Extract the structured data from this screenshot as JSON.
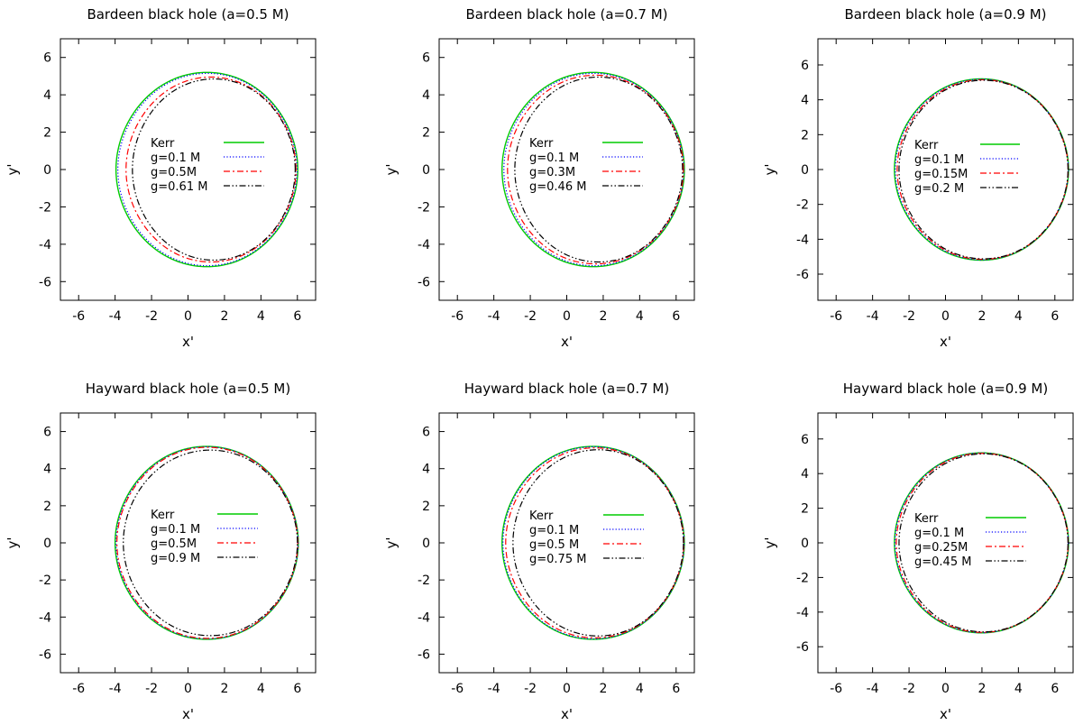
{
  "chart_data": [
    {
      "type": "line",
      "title": "Bardeen black hole (a=0.5 M)",
      "xlabel": "x'",
      "ylabel": "y'",
      "xlim": [
        -7,
        7
      ],
      "ylim": [
        -7,
        7
      ],
      "xticks": [
        "-6",
        "-4",
        "-2",
        "0",
        "2",
        "4",
        "6"
      ],
      "yticks": [
        "6",
        "4",
        "2",
        "0",
        "-2",
        "-4",
        "-6"
      ],
      "legend_position": "center",
      "series": [
        {
          "name": "Kerr",
          "color": "#00cc00",
          "dash": "solid",
          "shadow": {
            "left": -3.95,
            "right": 6.02,
            "center_y": 0,
            "top": 5.2,
            "bottom": -5.2
          }
        },
        {
          "name": "g=0.1 M",
          "color": "#0000ff",
          "dash": "dotted",
          "shadow": {
            "left": -3.85,
            "right": 5.98,
            "center_y": 0,
            "top": 5.15,
            "bottom": -5.15
          }
        },
        {
          "name": "g=0.5M",
          "color": "#ff0000",
          "dash": "dash-dot",
          "shadow": {
            "left": -3.4,
            "right": 5.92,
            "center_y": 0,
            "top": 4.95,
            "bottom": -4.95
          }
        },
        {
          "name": "g=0.61 M",
          "color": "#000000",
          "dash": "dash-dot-dot",
          "shadow": {
            "left": -3.05,
            "right": 5.88,
            "center_y": 0,
            "top": 4.85,
            "bottom": -4.85
          }
        }
      ]
    },
    {
      "type": "line",
      "title": "Bardeen black hole (a=0.7 M)",
      "xlabel": "x'",
      "ylabel": "y'",
      "xlim": [
        -7,
        7
      ],
      "ylim": [
        -7,
        7
      ],
      "xticks": [
        "-6",
        "-4",
        "-2",
        "0",
        "2",
        "4",
        "6"
      ],
      "yticks": [
        "6",
        "4",
        "2",
        "0",
        "-2",
        "-4",
        "-6"
      ],
      "legend_position": "center",
      "series": [
        {
          "name": "Kerr",
          "color": "#00cc00",
          "dash": "solid",
          "shadow": {
            "left": -3.55,
            "right": 6.45,
            "center_y": 0,
            "top": 5.2,
            "bottom": -5.2
          }
        },
        {
          "name": "g=0.1 M",
          "color": "#0000ff",
          "dash": "dotted",
          "shadow": {
            "left": -3.45,
            "right": 6.42,
            "center_y": 0,
            "top": 5.15,
            "bottom": -5.15
          }
        },
        {
          "name": "g=0.3M",
          "color": "#ff0000",
          "dash": "dash-dot",
          "shadow": {
            "left": -3.25,
            "right": 6.4,
            "center_y": 0,
            "top": 5.05,
            "bottom": -5.05
          }
        },
        {
          "name": "g=0.46 M",
          "color": "#000000",
          "dash": "dash-dot-dot",
          "shadow": {
            "left": -2.85,
            "right": 6.35,
            "center_y": 0,
            "top": 4.95,
            "bottom": -4.95
          }
        }
      ]
    },
    {
      "type": "line",
      "title": "Bardeen black hole (a=0.9 M)",
      "xlabel": "x'",
      "ylabel": "y'",
      "xlim": [
        -7,
        7
      ],
      "ylim": [
        -7.5,
        7.5
      ],
      "xticks": [
        "-6",
        "-4",
        "-2",
        "0",
        "2",
        "4",
        "6"
      ],
      "yticks": [
        "6",
        "4",
        "2",
        "0",
        "-2",
        "-4",
        "-6"
      ],
      "legend_position": "center-right",
      "series": [
        {
          "name": "Kerr",
          "color": "#00cc00",
          "dash": "solid",
          "shadow": {
            "left": -2.8,
            "right": 6.75,
            "center_y": 0,
            "top": 5.2,
            "bottom": -5.2
          }
        },
        {
          "name": "g=0.1 M",
          "color": "#0000ff",
          "dash": "dotted",
          "shadow": {
            "left": -2.75,
            "right": 6.74,
            "center_y": 0,
            "top": 5.18,
            "bottom": -5.18
          }
        },
        {
          "name": "g=0.15M",
          "color": "#ff0000",
          "dash": "dash-dot",
          "shadow": {
            "left": -2.65,
            "right": 6.73,
            "center_y": 0,
            "top": 5.15,
            "bottom": -5.15
          }
        },
        {
          "name": "g=0.2 M",
          "color": "#000000",
          "dash": "dash-dot-dot",
          "shadow": {
            "left": -2.55,
            "right": 6.72,
            "center_y": 0,
            "top": 5.12,
            "bottom": -5.12
          }
        }
      ]
    },
    {
      "type": "line",
      "title": "Hayward black hole (a=0.5 M)",
      "xlabel": "x'",
      "ylabel": "y'",
      "xlim": [
        -7,
        7
      ],
      "ylim": [
        -7,
        7
      ],
      "xticks": [
        "-6",
        "-4",
        "-2",
        "0",
        "2",
        "4",
        "6"
      ],
      "yticks": [
        "6",
        "4",
        "2",
        "0",
        "-2",
        "-4",
        "-6"
      ],
      "legend_position": "center",
      "series": [
        {
          "name": "Kerr",
          "color": "#00cc00",
          "dash": "solid",
          "shadow": {
            "left": -4.0,
            "right": 6.05,
            "center_y": 0,
            "top": 5.2,
            "bottom": -5.2
          }
        },
        {
          "name": "g=0.1 M",
          "color": "#0000ff",
          "dash": "dotted",
          "shadow": {
            "left": -3.95,
            "right": 6.04,
            "center_y": 0,
            "top": 5.18,
            "bottom": -5.18
          }
        },
        {
          "name": "g=0.5M",
          "color": "#ff0000",
          "dash": "dash-dot",
          "shadow": {
            "left": -3.9,
            "right": 6.02,
            "center_y": 0,
            "top": 5.15,
            "bottom": -5.15
          }
        },
        {
          "name": "g=0.9 M",
          "color": "#000000",
          "dash": "dash-dot-dot",
          "shadow": {
            "left": -3.55,
            "right": 6.0,
            "center_y": 0,
            "top": 5.0,
            "bottom": -5.0
          }
        }
      ]
    },
    {
      "type": "line",
      "title": "Hayward black hole (a=0.7 M)",
      "xlabel": "x'",
      "ylabel": "y'",
      "xlim": [
        -7,
        7
      ],
      "ylim": [
        -7,
        7
      ],
      "xticks": [
        "-6",
        "-4",
        "-2",
        "0",
        "2",
        "4",
        "6"
      ],
      "yticks": [
        "6",
        "4",
        "2",
        "0",
        "-2",
        "-4",
        "-6"
      ],
      "legend_position": "center",
      "series": [
        {
          "name": "Kerr",
          "color": "#00cc00",
          "dash": "solid",
          "shadow": {
            "left": -3.55,
            "right": 6.45,
            "center_y": 0,
            "top": 5.2,
            "bottom": -5.2
          }
        },
        {
          "name": "g=0.1 M",
          "color": "#0000ff",
          "dash": "dotted",
          "shadow": {
            "left": -3.5,
            "right": 6.44,
            "center_y": 0,
            "top": 5.18,
            "bottom": -5.18
          }
        },
        {
          "name": "g=0.5 M",
          "color": "#ff0000",
          "dash": "dash-dot",
          "shadow": {
            "left": -3.35,
            "right": 6.42,
            "center_y": 0,
            "top": 5.12,
            "bottom": -5.12
          }
        },
        {
          "name": "g=0.75 M",
          "color": "#000000",
          "dash": "dash-dot-dot",
          "shadow": {
            "left": -2.95,
            "right": 6.4,
            "center_y": 0,
            "top": 5.02,
            "bottom": -5.02
          }
        }
      ]
    },
    {
      "type": "line",
      "title": "Hayward black hole (a=0.9 M)",
      "xlabel": "x'",
      "ylabel": "y'",
      "xlim": [
        -7,
        7
      ],
      "ylim": [
        -7.5,
        7.5
      ],
      "xticks": [
        "-6",
        "-4",
        "-2",
        "0",
        "2",
        "4",
        "6"
      ],
      "yticks": [
        "6",
        "4",
        "2",
        "0",
        "-2",
        "-4",
        "-6"
      ],
      "legend_position": "center-right",
      "series": [
        {
          "name": "Kerr",
          "color": "#00cc00",
          "dash": "solid",
          "shadow": {
            "left": -2.8,
            "right": 6.75,
            "center_y": 0,
            "top": 5.2,
            "bottom": -5.2
          }
        },
        {
          "name": "g=0.1 M",
          "color": "#0000ff",
          "dash": "dotted",
          "shadow": {
            "left": -2.77,
            "right": 6.74,
            "center_y": 0,
            "top": 5.19,
            "bottom": -5.19
          }
        },
        {
          "name": "g=0.25M",
          "color": "#ff0000",
          "dash": "dash-dot",
          "shadow": {
            "left": -2.7,
            "right": 6.73,
            "center_y": 0,
            "top": 5.17,
            "bottom": -5.17
          }
        },
        {
          "name": "g=0.45 M",
          "color": "#000000",
          "dash": "dash-dot-dot",
          "shadow": {
            "left": -2.55,
            "right": 6.72,
            "center_y": 0,
            "top": 5.14,
            "bottom": -5.14
          }
        }
      ]
    }
  ]
}
